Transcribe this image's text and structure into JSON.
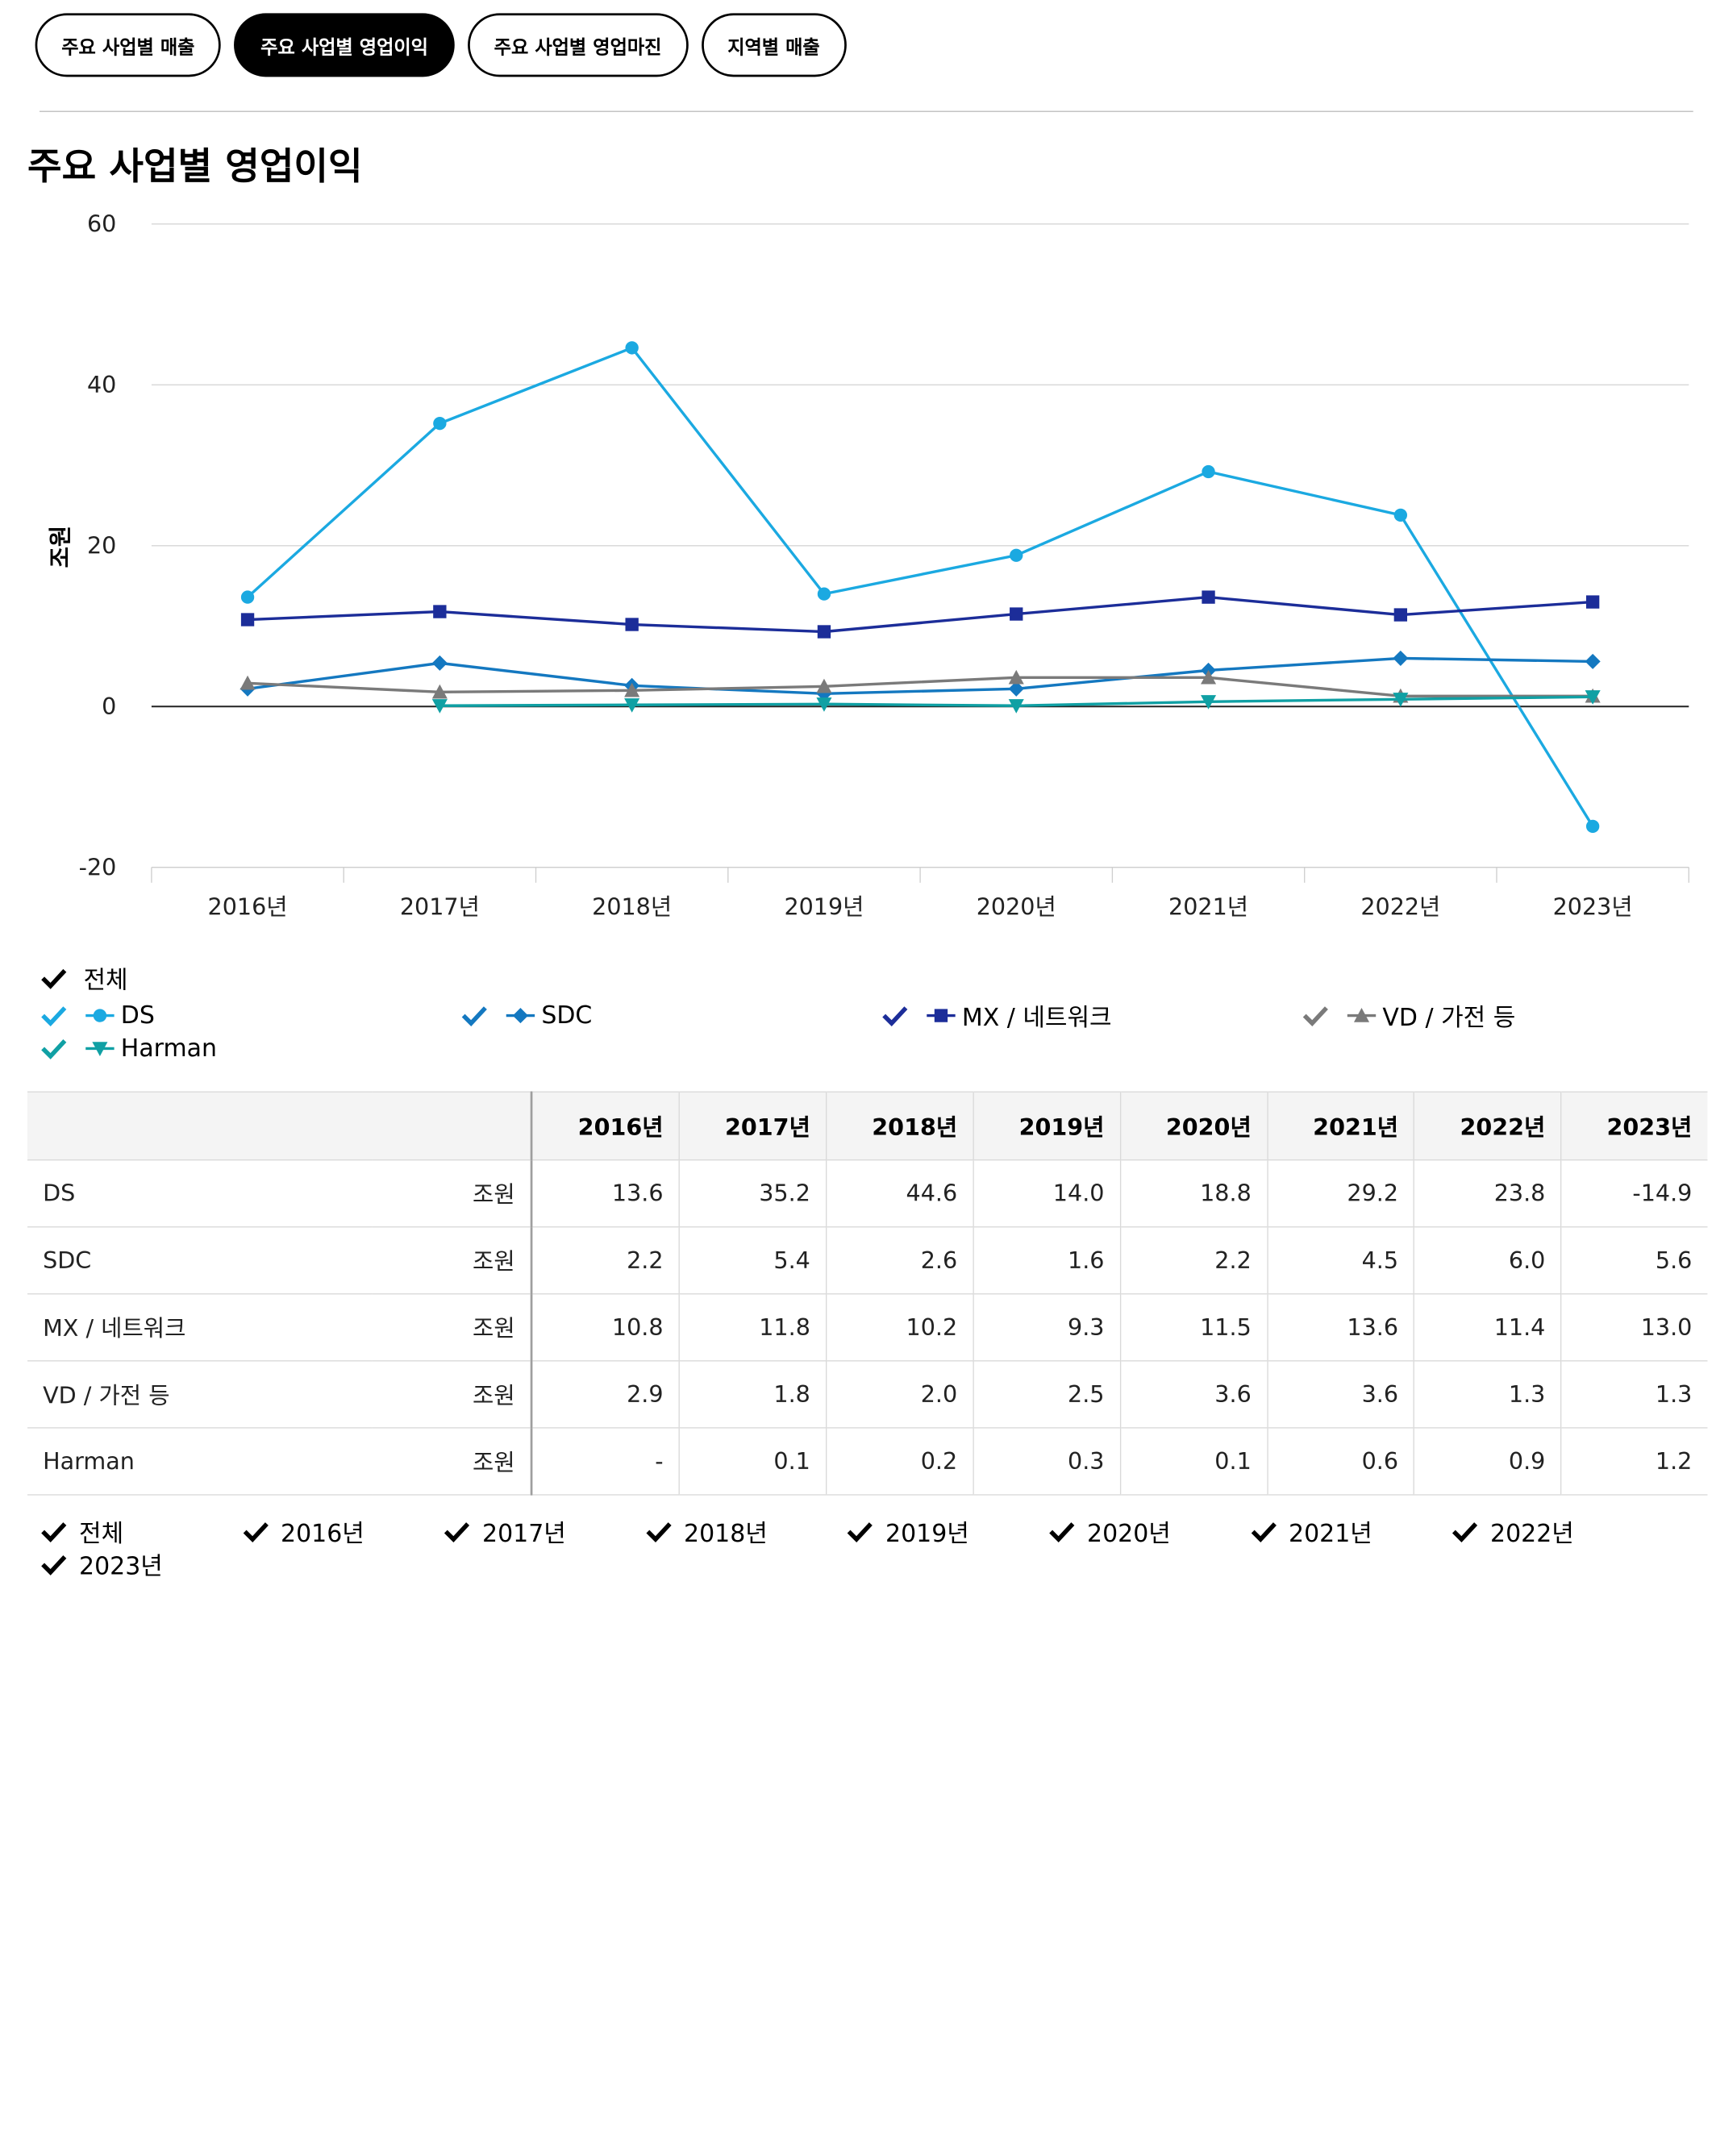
{
  "tabs": [
    {
      "label": "주요 사업별 매출",
      "active": false
    },
    {
      "label": "주요 사업별 영업이익",
      "active": true
    },
    {
      "label": "주요 사업별 영업마진",
      "active": false
    },
    {
      "label": "지역별 매출",
      "active": false
    }
  ],
  "page_title": "주요 사업별 영업이익",
  "chart_data": {
    "type": "line",
    "title": "주요 사업별 영업이익",
    "xlabel": "",
    "ylabel": "조원",
    "ylim": [
      -20,
      60
    ],
    "yticks": [
      60,
      40,
      20,
      0,
      -20
    ],
    "categories": [
      "2016년",
      "2017년",
      "2018년",
      "2019년",
      "2020년",
      "2021년",
      "2022년",
      "2023년"
    ],
    "grid": true,
    "series": [
      {
        "name": "DS",
        "color": "#1ba9e1",
        "marker": "circle",
        "values": [
          13.6,
          35.2,
          44.6,
          14.0,
          18.8,
          29.2,
          23.8,
          -14.9
        ]
      },
      {
        "name": "SDC",
        "color": "#1478c0",
        "marker": "diamond",
        "values": [
          2.2,
          5.4,
          2.6,
          1.6,
          2.2,
          4.5,
          6.0,
          5.6
        ]
      },
      {
        "name": "MX / 네트워크",
        "color": "#1c2d99",
        "marker": "square",
        "values": [
          10.8,
          11.8,
          10.2,
          9.3,
          11.5,
          13.6,
          11.4,
          13.0
        ]
      },
      {
        "name": "VD / 가전 등",
        "color": "#7a7a7a",
        "marker": "triangle-up",
        "values": [
          2.9,
          1.8,
          2.0,
          2.5,
          3.6,
          3.6,
          1.3,
          1.3
        ]
      },
      {
        "name": "Harman",
        "color": "#10a0a4",
        "marker": "triangle-down",
        "values": [
          null,
          0.1,
          0.2,
          0.3,
          0.1,
          0.6,
          0.9,
          1.2
        ]
      }
    ]
  },
  "legend": {
    "all_label": "전체"
  },
  "table": {
    "headers": [
      "2016년",
      "2017년",
      "2018년",
      "2019년",
      "2020년",
      "2021년",
      "2022년",
      "2023년"
    ],
    "rows": [
      {
        "name": "DS",
        "unit": "조원",
        "values": [
          "13.6",
          "35.2",
          "44.6",
          "14.0",
          "18.8",
          "29.2",
          "23.8",
          "-14.9"
        ]
      },
      {
        "name": "SDC",
        "unit": "조원",
        "values": [
          "2.2",
          "5.4",
          "2.6",
          "1.6",
          "2.2",
          "4.5",
          "6.0",
          "5.6"
        ]
      },
      {
        "name": "MX / 네트워크",
        "unit": "조원",
        "values": [
          "10.8",
          "11.8",
          "10.2",
          "9.3",
          "11.5",
          "13.6",
          "11.4",
          "13.0"
        ]
      },
      {
        "name": "VD / 가전 등",
        "unit": "조원",
        "values": [
          "2.9",
          "1.8",
          "2.0",
          "2.5",
          "3.6",
          "3.6",
          "1.3",
          "1.3"
        ]
      },
      {
        "name": "Harman",
        "unit": "조원",
        "values": [
          "-",
          "0.1",
          "0.2",
          "0.3",
          "0.1",
          "0.6",
          "0.9",
          "1.2"
        ]
      }
    ]
  },
  "filters": [
    "전체",
    "2016년",
    "2017년",
    "2018년",
    "2019년",
    "2020년",
    "2021년",
    "2022년",
    "2023년"
  ]
}
